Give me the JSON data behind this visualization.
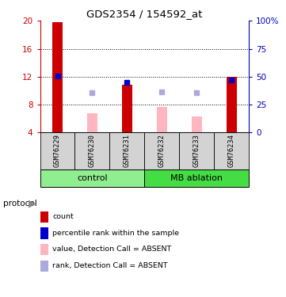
{
  "title": "GDS2354 / 154592_at",
  "samples": [
    "GSM76229",
    "GSM76230",
    "GSM76231",
    "GSM76232",
    "GSM76233",
    "GSM76234"
  ],
  "ylim_left": [
    4,
    20
  ],
  "ylim_right": [
    0,
    100
  ],
  "yticks_left": [
    4,
    8,
    12,
    16,
    20
  ],
  "yticks_right": [
    0,
    25,
    50,
    75,
    100
  ],
  "ytick_labels_left": [
    "4",
    "8",
    "12",
    "16",
    "20"
  ],
  "ytick_labels_right": [
    "0",
    "25",
    "50",
    "75",
    "100%"
  ],
  "red_bars": [
    19.8,
    null,
    10.8,
    null,
    null,
    12.0
  ],
  "blue_squares": [
    12.1,
    null,
    11.2,
    null,
    null,
    11.5
  ],
  "pink_bars": [
    null,
    6.7,
    null,
    7.7,
    6.3,
    null
  ],
  "lavender_squares": [
    null,
    9.7,
    null,
    9.8,
    9.7,
    null
  ],
  "bar_bottom": 4,
  "bar_color_red": "#CC0000",
  "bar_color_pink": "#FFB6C1",
  "square_color_blue": "#0000CC",
  "square_color_lavender": "#AAAADD",
  "bar_width": 0.3,
  "ctrl_color": "#90EE90",
  "mb_color": "#44DD44",
  "sample_box_color": "#D3D3D3",
  "legend_items": [
    {
      "color": "#CC0000",
      "label": "count"
    },
    {
      "color": "#0000CC",
      "label": "percentile rank within the sample"
    },
    {
      "color": "#FFB6C1",
      "label": "value, Detection Call = ABSENT"
    },
    {
      "color": "#AAAADD",
      "label": "rank, Detection Call = ABSENT"
    }
  ],
  "left_axis_color": "#CC0000",
  "right_axis_color": "#0000BB",
  "grid_lines": [
    8,
    12,
    16
  ]
}
